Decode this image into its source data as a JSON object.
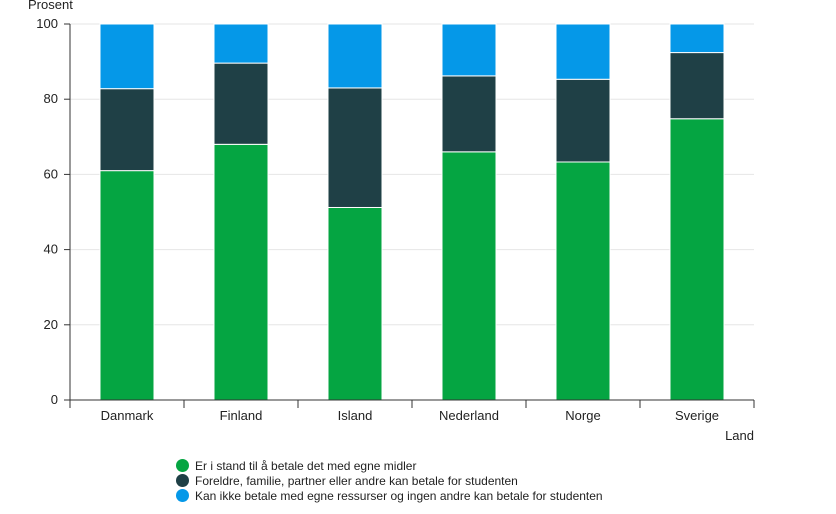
{
  "chart_data": {
    "type": "bar",
    "stacked": true,
    "categories": [
      "Danmark",
      "Finland",
      "Island",
      "Nederland",
      "Norge",
      "Sverige"
    ],
    "series": [
      {
        "name": "Er i stand til å betale det med egne midler",
        "color": "#05a542",
        "values": [
          61,
          68,
          51.2,
          66,
          63.3,
          74.8
        ]
      },
      {
        "name": "Foreldre, familie, partner eller andre kan betale for studenten",
        "color": "#1f4046",
        "values": [
          21.8,
          21.6,
          31.8,
          20.2,
          22,
          17.6
        ]
      },
      {
        "name": "Kan ikke betale med egne ressurser og ingen andre kan betale for studenten",
        "color": "#0598e8",
        "values": [
          17.2,
          10.4,
          17,
          13.8,
          14.7,
          7.6
        ]
      }
    ],
    "ylabel": "Prosent",
    "xlabel": "Land",
    "ylim": [
      0,
      100
    ],
    "yticks": [
      0,
      20,
      40,
      60,
      80,
      100
    ],
    "grid": true,
    "legend_position": "bottom"
  }
}
